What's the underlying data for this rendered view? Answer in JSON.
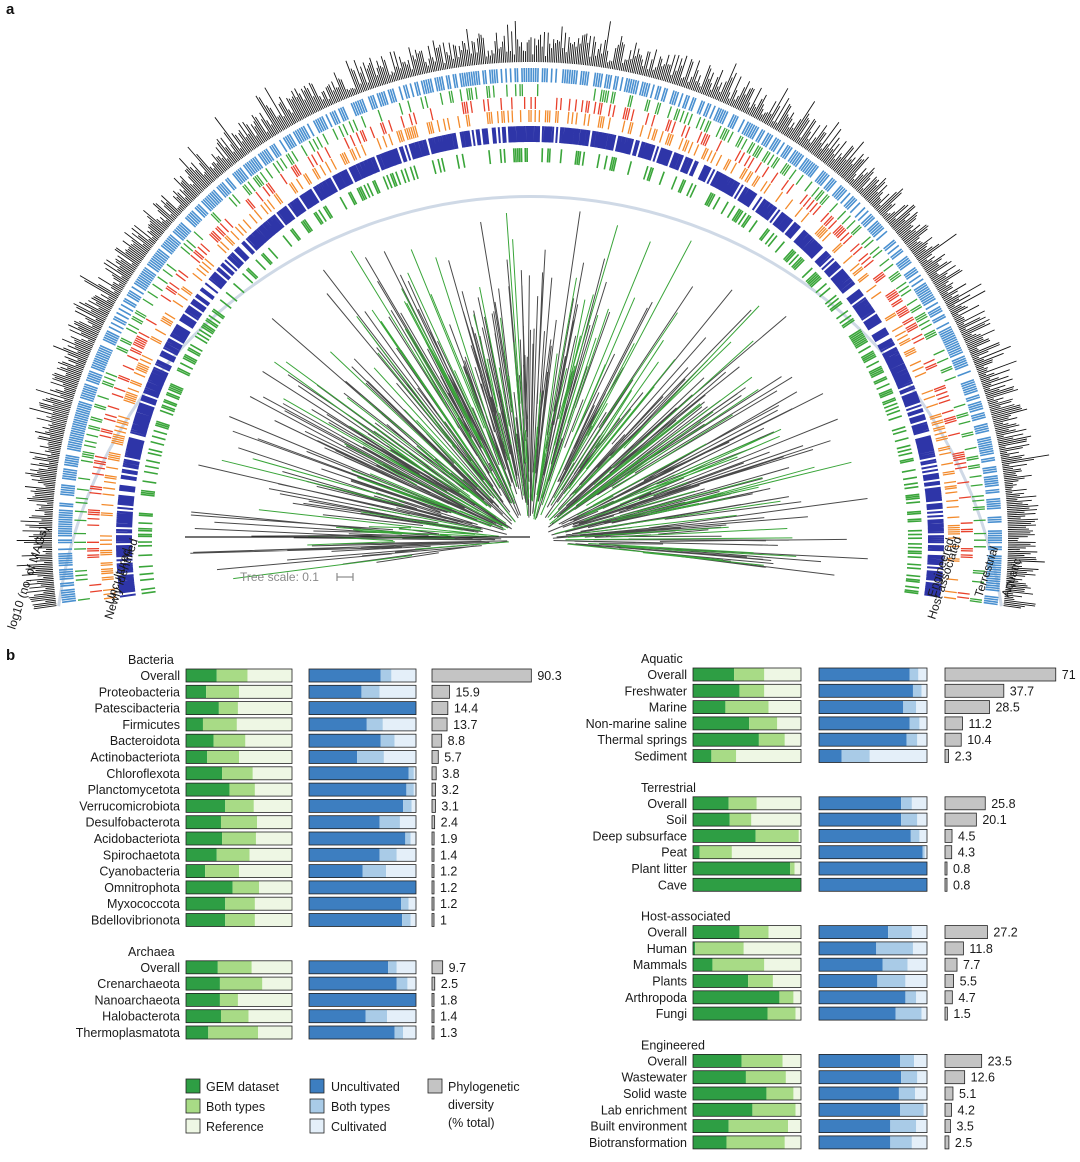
{
  "panel_a": {
    "label": "a",
    "ring_labels_left": [
      "log10 (no. of MAGs)",
      "Uncultured",
      "Newly identified"
    ],
    "ring_labels_right": [
      "Engineered",
      "Host-associated",
      "Terrestrial",
      "Aquatic"
    ],
    "tree_scale": "Tree scale: 0.1",
    "colors": {
      "histogram": "#111111",
      "aquatic": "#4a90d0",
      "terrestrial": "#3aa53a",
      "host_associated": "#e8412c",
      "engineered": "#f38a2b",
      "uncultured": "#2e35a8",
      "newly_identified": "#3aa53a",
      "branch": "#4a4a4a",
      "branch_highlight": "#3aa53a"
    }
  },
  "panel_b": {
    "label": "b",
    "colors": {
      "gem": "#2e9e44",
      "both_green": "#a8db86",
      "reference": "#eef7e4",
      "uncultivated": "#3d7ec0",
      "both_blue": "#a9cbe7",
      "cultivated": "#e4eff9",
      "pd": "#c4c4c4"
    },
    "legend": {
      "green": [
        "GEM dataset",
        "Both types",
        "Reference"
      ],
      "blue": [
        "Uncultivated",
        "Both types",
        "Cultivated"
      ],
      "gray": [
        "Phylogenetic",
        "diversity",
        "(% total)"
      ]
    },
    "left_groups": [
      {
        "title": "Bacteria",
        "rows": [
          {
            "name": "Overall",
            "green": [
              29,
              29,
              42
            ],
            "blue": [
              67,
              10,
              23
            ],
            "pd": 90.3
          },
          {
            "name": "Proteobacteria",
            "green": [
              19,
              31,
              50
            ],
            "blue": [
              49,
              17,
              34
            ],
            "pd": 15.9
          },
          {
            "name": "Patescibacteria",
            "green": [
              31,
              18,
              51
            ],
            "blue": [
              100,
              0,
              0
            ],
            "pd": 14.4
          },
          {
            "name": "Firmicutes",
            "green": [
              16,
              32,
              52
            ],
            "blue": [
              54,
              15,
              31
            ],
            "pd": 13.7
          },
          {
            "name": "Bacteroidota",
            "green": [
              26,
              30,
              44
            ],
            "blue": [
              67,
              13,
              20
            ],
            "pd": 8.8
          },
          {
            "name": "Actinobacteriota",
            "green": [
              20,
              30,
              50
            ],
            "blue": [
              45,
              25,
              30
            ],
            "pd": 5.7
          },
          {
            "name": "Chloroflexota",
            "green": [
              34,
              29,
              37
            ],
            "blue": [
              93,
              5,
              2
            ],
            "pd": 3.8
          },
          {
            "name": "Planctomycetota",
            "green": [
              41,
              24,
              35
            ],
            "blue": [
              91,
              7,
              2
            ],
            "pd": 3.2
          },
          {
            "name": "Verrucomicrobiota",
            "green": [
              37,
              27,
              36
            ],
            "blue": [
              88,
              8,
              4
            ],
            "pd": 3.1
          },
          {
            "name": "Desulfobacterota",
            "green": [
              33,
              34,
              33
            ],
            "blue": [
              66,
              19,
              15
            ],
            "pd": 2.4
          },
          {
            "name": "Acidobacteriota",
            "green": [
              34,
              32,
              34
            ],
            "blue": [
              90,
              5,
              5
            ],
            "pd": 1.9
          },
          {
            "name": "Spirochaetota",
            "green": [
              29,
              31,
              40
            ],
            "blue": [
              66,
              16,
              18
            ],
            "pd": 1.4
          },
          {
            "name": "Cyanobacteria",
            "green": [
              18,
              32,
              50
            ],
            "blue": [
              50,
              22,
              28
            ],
            "pd": 1.2
          },
          {
            "name": "Omnitrophota",
            "green": [
              44,
              25,
              31
            ],
            "blue": [
              100,
              0,
              0
            ],
            "pd": 1.2
          },
          {
            "name": "Myxococcota",
            "green": [
              37,
              28,
              35
            ],
            "blue": [
              86,
              7,
              7
            ],
            "pd": 1.2
          },
          {
            "name": "Bdellovibrionota",
            "green": [
              37,
              28,
              35
            ],
            "blue": [
              87,
              8,
              5
            ],
            "pd": 1
          }
        ]
      },
      {
        "title": "Archaea",
        "rows": [
          {
            "name": "Overall",
            "green": [
              30,
              32,
              38
            ],
            "blue": [
              74,
              8,
              18
            ],
            "pd": 9.7
          },
          {
            "name": "Crenarchaeota",
            "green": [
              32,
              40,
              28
            ],
            "blue": [
              82,
              10,
              8
            ],
            "pd": 2.5
          },
          {
            "name": "Nanoarchaeota",
            "green": [
              32,
              17,
              51
            ],
            "blue": [
              100,
              0,
              0
            ],
            "pd": 1.8
          },
          {
            "name": "Halobacterota",
            "green": [
              33,
              26,
              41
            ],
            "blue": [
              53,
              20,
              27
            ],
            "pd": 1.4
          },
          {
            "name": "Thermoplasmatota",
            "green": [
              21,
              47,
              32
            ],
            "blue": [
              80,
              8,
              12
            ],
            "pd": 1.3
          }
        ]
      }
    ],
    "right_groups": [
      {
        "title": "Aquatic",
        "rows": [
          {
            "name": "Overall",
            "green": [
              38,
              28,
              34
            ],
            "blue": [
              84,
              8,
              8
            ],
            "pd": 71
          },
          {
            "name": "Freshwater",
            "green": [
              43,
              23,
              34
            ],
            "blue": [
              87,
              8,
              5
            ],
            "pd": 37.7
          },
          {
            "name": "Marine",
            "green": [
              30,
              40,
              30
            ],
            "blue": [
              78,
              12,
              10
            ],
            "pd": 28.5
          },
          {
            "name": "Non-marine saline",
            "green": [
              52,
              26,
              22
            ],
            "blue": [
              84,
              9,
              7
            ],
            "pd": 11.2
          },
          {
            "name": "Thermal springs",
            "green": [
              61,
              24,
              15
            ],
            "blue": [
              81,
              10,
              9
            ],
            "pd": 10.4
          },
          {
            "name": "Sediment",
            "green": [
              17,
              23,
              60
            ],
            "blue": [
              21,
              26,
              53
            ],
            "pd": 2.3
          }
        ]
      },
      {
        "title": "Terrestrial",
        "rows": [
          {
            "name": "Overall",
            "green": [
              33,
              26,
              41
            ],
            "blue": [
              76,
              10,
              14
            ],
            "pd": 25.8
          },
          {
            "name": "Soil",
            "green": [
              34,
              20,
              46
            ],
            "blue": [
              76,
              15,
              9
            ],
            "pd": 20.1
          },
          {
            "name": "Deep subsurface",
            "green": [
              58,
              40,
              2
            ],
            "blue": [
              85,
              8,
              7
            ],
            "pd": 4.5
          },
          {
            "name": "Peat",
            "green": [
              6,
              30,
              64
            ],
            "blue": [
              96,
              2,
              2
            ],
            "pd": 4.3
          },
          {
            "name": "Plant litter",
            "green": [
              90,
              4,
              6
            ],
            "blue": [
              100,
              0,
              0
            ],
            "pd": 0.8
          },
          {
            "name": "Cave",
            "green": [
              100,
              0,
              0
            ],
            "blue": [
              100,
              0,
              0
            ],
            "pd": 0.8
          }
        ]
      },
      {
        "title": "Host-associated",
        "rows": [
          {
            "name": "Overall",
            "green": [
              43,
              27,
              30
            ],
            "blue": [
              64,
              22,
              14
            ],
            "pd": 27.2
          },
          {
            "name": "Human",
            "green": [
              2,
              45,
              53
            ],
            "blue": [
              53,
              34,
              13
            ],
            "pd": 11.8
          },
          {
            "name": "Mammals",
            "green": [
              18,
              48,
              34
            ],
            "blue": [
              59,
              23,
              18
            ],
            "pd": 7.7
          },
          {
            "name": "Plants",
            "green": [
              51,
              23,
              26
            ],
            "blue": [
              54,
              26,
              20
            ],
            "pd": 5.5
          },
          {
            "name": "Arthropoda",
            "green": [
              80,
              13,
              7
            ],
            "blue": [
              80,
              10,
              10
            ],
            "pd": 4.7
          },
          {
            "name": "Fungi",
            "green": [
              69,
              26,
              5
            ],
            "blue": [
              71,
              24,
              5
            ],
            "pd": 1.5
          }
        ]
      },
      {
        "title": "Engineered",
        "rows": [
          {
            "name": "Overall",
            "green": [
              45,
              38,
              17
            ],
            "blue": [
              75,
              13,
              12
            ],
            "pd": 23.5
          },
          {
            "name": "Wastewater",
            "green": [
              49,
              37,
              14
            ],
            "blue": [
              76,
              15,
              9
            ],
            "pd": 12.6
          },
          {
            "name": "Solid waste",
            "green": [
              68,
              25,
              7
            ],
            "blue": [
              74,
              15,
              11
            ],
            "pd": 5.1
          },
          {
            "name": "Lab enrichment",
            "green": [
              55,
              40,
              5
            ],
            "blue": [
              75,
              22,
              3
            ],
            "pd": 4.2
          },
          {
            "name": "Built environment",
            "green": [
              33,
              55,
              12
            ],
            "blue": [
              66,
              24,
              10
            ],
            "pd": 3.5
          },
          {
            "name": "Biotransformation",
            "green": [
              31,
              54,
              15
            ],
            "blue": [
              66,
              20,
              14
            ],
            "pd": 2.5
          }
        ]
      }
    ]
  }
}
